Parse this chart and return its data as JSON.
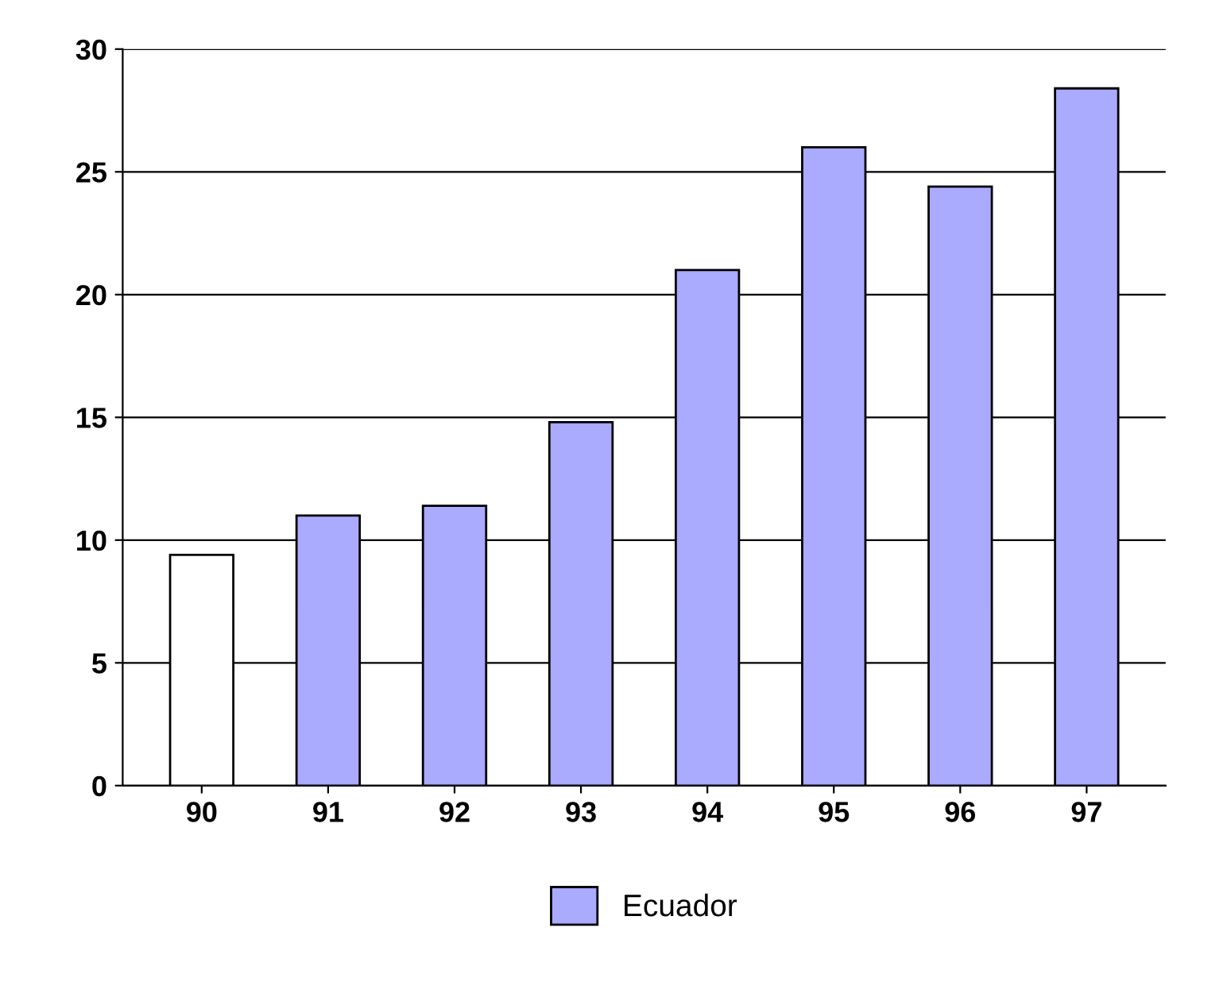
{
  "chart_data": {
    "type": "bar",
    "categories": [
      "90",
      "91",
      "92",
      "93",
      "94",
      "95",
      "96",
      "97"
    ],
    "series": [
      {
        "name": "Ecuador",
        "color": "#aaaaff",
        "colors": [
          "#ffffff",
          "#aaaaff",
          "#aaaaff",
          "#aaaaff",
          "#aaaaff",
          "#aaaaff",
          "#aaaaff",
          "#aaaaff"
        ],
        "values": [
          9.4,
          11.0,
          11.4,
          14.8,
          21.0,
          26.0,
          24.4,
          28.4
        ]
      }
    ],
    "ylim": [
      0,
      30
    ],
    "yticks": [
      0,
      5,
      10,
      15,
      20,
      25,
      30
    ],
    "grid": "y",
    "legend": "bottom"
  }
}
